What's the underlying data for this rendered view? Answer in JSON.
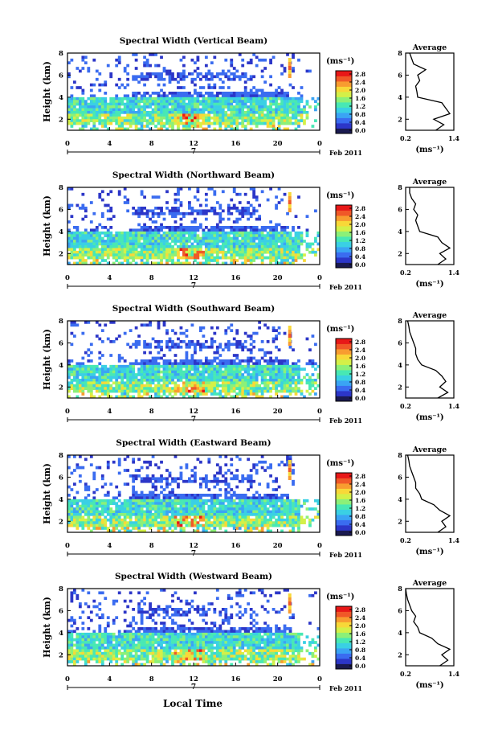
{
  "figure": {
    "xlabel": "Local Time",
    "ylabel": "Height (km)",
    "colorbar_label": "(ms⁻¹)",
    "colorbar_ticks": [
      "0.0",
      "0.4",
      "0.8",
      "1.2",
      "1.6",
      "2.0",
      "2.4",
      "2.8"
    ],
    "date_marker": "7",
    "date_suffix": "Feb 2011",
    "avg_title": "Average",
    "avg_xlabel": "(ms⁻¹)",
    "avg_xticks": [
      "0.2",
      "1.4"
    ],
    "colors": [
      "#1a1a50",
      "#2c36c8",
      "#3a6cf0",
      "#3aa4f4",
      "#3ad0e4",
      "#48e8b4",
      "#8cf078",
      "#d4f048",
      "#f8d838",
      "#f89c30",
      "#f05828",
      "#e81818"
    ]
  },
  "chart_data": [
    {
      "type": "heatmap",
      "title": "Spectral Width (Vertical Beam)",
      "x_ticks": [
        "0",
        "4",
        "8",
        "12",
        "16",
        "20",
        "0"
      ],
      "xlim": [
        0,
        24
      ],
      "y_ticks": [
        "2",
        "4",
        "6",
        "8"
      ],
      "ylim": [
        1,
        8
      ],
      "color_range": [
        0,
        2.8
      ],
      "profile": {
        "title": "Average",
        "xlim": [
          0.2,
          1.4
        ],
        "heights": [
          1,
          1.5,
          2,
          2.5,
          3,
          3.5,
          4,
          4.5,
          5,
          5.5,
          6,
          6.5,
          7,
          7.5,
          8
        ],
        "values": [
          0.95,
          1.15,
          0.9,
          1.3,
          1.2,
          1.1,
          0.5,
          0.48,
          0.45,
          0.55,
          0.5,
          0.7,
          0.4,
          0.35,
          0.3
        ]
      }
    },
    {
      "type": "heatmap",
      "title": "Spectral Width (Northward Beam)",
      "x_ticks": [
        "0",
        "4",
        "8",
        "12",
        "16",
        "20",
        "0"
      ],
      "xlim": [
        0,
        24
      ],
      "y_ticks": [
        "2",
        "4",
        "6",
        "8"
      ],
      "ylim": [
        1,
        8
      ],
      "color_range": [
        0,
        2.8
      ],
      "profile": {
        "title": "Average",
        "xlim": [
          0.2,
          1.4
        ],
        "heights": [
          1,
          1.5,
          2,
          2.5,
          3,
          3.5,
          4,
          4.5,
          5,
          5.5,
          6,
          6.5,
          7,
          7.5,
          8
        ],
        "values": [
          1.0,
          1.2,
          1.05,
          1.3,
          1.1,
          1.0,
          0.55,
          0.5,
          0.45,
          0.5,
          0.4,
          0.45,
          0.35,
          0.3,
          0.3
        ]
      }
    },
    {
      "type": "heatmap",
      "title": "Spectral Width (Southward Beam)",
      "x_ticks": [
        "0",
        "4",
        "8",
        "12",
        "16",
        "20",
        "0"
      ],
      "xlim": [
        0,
        24
      ],
      "y_ticks": [
        "2",
        "4",
        "6",
        "8"
      ],
      "ylim": [
        1,
        8
      ],
      "color_range": [
        0,
        2.8
      ],
      "profile": {
        "title": "Average",
        "xlim": [
          0.2,
          1.4
        ],
        "heights": [
          1,
          1.5,
          2,
          2.5,
          3,
          3.5,
          4,
          4.5,
          5,
          5.5,
          6,
          6.5,
          7,
          7.5,
          8
        ],
        "values": [
          1.0,
          1.25,
          1.05,
          1.2,
          1.1,
          0.95,
          0.6,
          0.5,
          0.45,
          0.45,
          0.4,
          0.35,
          0.3,
          0.28,
          0.25
        ]
      }
    },
    {
      "type": "heatmap",
      "title": "Spectral Width (Eastward Beam)",
      "x_ticks": [
        "0",
        "4",
        "8",
        "12",
        "16",
        "20",
        "0"
      ],
      "xlim": [
        0,
        24
      ],
      "y_ticks": [
        "2",
        "4",
        "6",
        "8"
      ],
      "ylim": [
        1,
        8
      ],
      "color_range": [
        0,
        2.8
      ],
      "profile": {
        "title": "Average",
        "xlim": [
          0.2,
          1.4
        ],
        "heights": [
          1,
          1.5,
          2,
          2.5,
          3,
          3.5,
          4,
          4.5,
          5,
          5.5,
          6,
          6.5,
          7,
          7.5,
          8
        ],
        "values": [
          1.0,
          1.2,
          1.1,
          1.3,
          1.05,
          0.9,
          0.6,
          0.55,
          0.45,
          0.45,
          0.4,
          0.35,
          0.3,
          0.28,
          0.25
        ]
      }
    },
    {
      "type": "heatmap",
      "title": "Spectral Width (Westward Beam)",
      "x_ticks": [
        "0",
        "4",
        "8",
        "12",
        "16",
        "20",
        "0"
      ],
      "xlim": [
        0,
        24
      ],
      "y_ticks": [
        "2",
        "4",
        "6",
        "8"
      ],
      "ylim": [
        1,
        8
      ],
      "color_range": [
        0,
        2.8
      ],
      "profile": {
        "title": "Average",
        "xlim": [
          0.2,
          1.4
        ],
        "heights": [
          1,
          1.5,
          2,
          2.5,
          3,
          3.5,
          4,
          4.5,
          5,
          5.5,
          6,
          6.5,
          7,
          7.5,
          8
        ],
        "values": [
          1.05,
          1.25,
          1.1,
          1.3,
          1.0,
          0.85,
          0.55,
          0.5,
          0.4,
          0.45,
          0.35,
          0.3,
          0.25,
          0.22,
          0.2
        ]
      }
    }
  ]
}
